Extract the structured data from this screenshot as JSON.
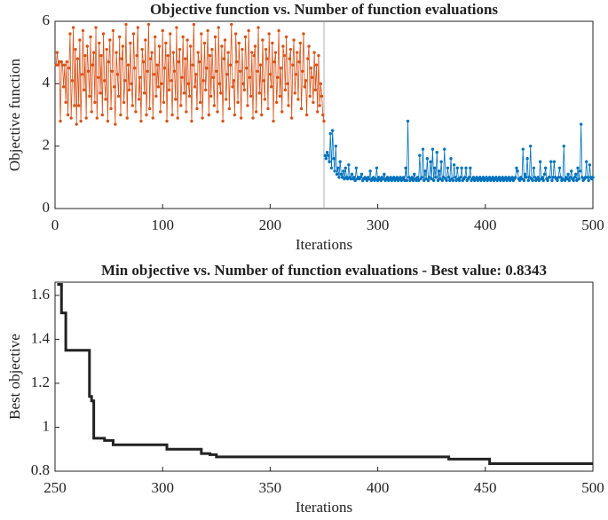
{
  "chart_data": [
    {
      "type": "line",
      "title": "Objective function vs. Number of function evaluations",
      "xlabel": "Iterations",
      "ylabel": "Objective function",
      "xlim": [
        0,
        500
      ],
      "xticks": [
        0,
        100,
        200,
        300,
        400,
        500
      ],
      "ylim": [
        0,
        6
      ],
      "yticks": [
        0,
        2,
        4,
        6
      ],
      "vline": 250,
      "markers": true,
      "series": [
        {
          "color": "#d95319",
          "x_start": 1,
          "values": [
            4.6,
            5.0,
            4.6,
            4.7,
            2.8,
            4.7,
            4.6,
            3.9,
            4.6,
            3.4,
            4.7,
            3.0,
            4.5,
            5.6,
            2.9,
            4.1,
            5.8,
            3.3,
            5.1,
            2.7,
            4.8,
            3.3,
            5.4,
            2.8,
            4.3,
            5.7,
            3.8,
            4.9,
            2.9,
            5.2,
            4.4,
            3.6,
            5.5,
            3.1,
            4.6,
            5.0,
            3.4,
            5.8,
            2.9,
            4.2,
            5.3,
            3.7,
            4.9,
            3.0,
            5.6,
            4.1,
            3.5,
            5.1,
            2.8,
            4.7,
            5.4,
            3.2,
            4.4,
            5.7,
            3.9,
            2.7,
            5.0,
            4.3,
            3.6,
            5.5,
            3.0,
            4.8,
            5.2,
            3.4,
            4.1,
            5.9,
            2.9,
            4.6,
            3.8,
            5.3,
            4.0,
            3.3,
            5.6,
            4.5,
            3.1,
            4.9,
            5.8,
            3.5,
            4.2,
            2.8,
            5.1,
            4.7,
            3.7,
            5.4,
            3.0,
            4.4,
            5.9,
            3.2,
            4.8,
            5.0,
            2.9,
            4.3,
            5.5,
            3.6,
            4.6,
            3.9,
            5.2,
            3.1,
            4.0,
            5.7,
            3.4,
            4.5,
            5.3,
            2.8,
            4.9,
            3.8,
            5.6,
            4.1,
            3.0,
            5.0,
            4.4,
            3.5,
            5.8,
            2.9,
            4.7,
            5.1,
            3.3,
            4.2,
            5.5,
            3.7,
            4.8,
            3.1,
            5.4,
            4.0,
            3.6,
            5.2,
            2.8,
            4.6,
            5.9,
            3.9,
            4.3,
            3.2,
            5.0,
            4.7,
            3.4,
            5.6,
            2.9,
            4.1,
            5.3,
            3.8,
            4.5,
            5.7,
            3.0,
            4.9,
            3.6,
            5.1,
            4.2,
            3.3,
            5.5,
            4.4,
            3.1,
            5.8,
            4.0,
            3.7,
            5.2,
            2.8,
            4.8,
            5.4,
            3.5,
            4.3,
            5.0,
            3.2,
            4.6,
            5.9,
            3.9,
            4.1,
            3.0,
            5.6,
            4.7,
            3.4,
            5.3,
            4.4,
            2.9,
            5.1,
            4.0,
            3.8,
            5.5,
            4.5,
            3.3,
            5.7,
            4.2,
            3.6,
            5.0,
            2.9,
            4.9,
            5.2,
            3.1,
            4.4,
            5.8,
            3.7,
            4.6,
            3.0,
            5.4,
            4.1,
            3.5,
            5.1,
            4.8,
            3.2,
            5.6,
            4.3,
            3.9,
            5.3,
            2.8,
            4.7,
            5.0,
            3.4,
            4.2,
            5.7,
            3.6,
            4.5,
            3.1,
            5.2,
            4.9,
            3.8,
            5.5,
            4.0,
            3.3,
            4.8,
            5.1,
            2.9,
            4.6,
            5.4,
            3.7,
            4.3,
            5.0,
            3.5,
            4.7,
            5.3,
            3.2,
            4.4,
            5.6,
            3.9,
            4.1,
            3.0,
            4.8,
            5.2,
            3.6,
            4.5,
            4.2,
            3.4,
            5.0,
            3.8,
            4.6,
            3.1,
            4.9,
            3.3,
            4.0,
            3.6,
            3.0,
            2.8
          ]
        },
        {
          "color": "#0072bd",
          "x_start": 251,
          "values": [
            1.7,
            1.6,
            1.8,
            1.7,
            1.5,
            2.4,
            1.3,
            2.5,
            1.6,
            1.2,
            2.0,
            1.1,
            1.3,
            1.0,
            1.5,
            1.1,
            1.0,
            1.2,
            0.95,
            1.3,
            1.0,
            0.95,
            1.4,
            1.0,
            0.95,
            1.1,
            0.95,
            1.0,
            0.9,
            1.3,
            0.95,
            1.0,
            0.95,
            1.0,
            1.1,
            0.9,
            0.95,
            1.0,
            0.95,
            0.9,
            1.0,
            0.95,
            1.2,
            0.9,
            0.95,
            1.0,
            0.9,
            0.95,
            1.3,
            0.9,
            1.0,
            0.95,
            0.9,
            1.0,
            0.95,
            1.1,
            0.9,
            0.95,
            1.0,
            0.9,
            0.95,
            1.0,
            0.9,
            0.95,
            1.0,
            0.9,
            0.95,
            1.0,
            0.9,
            0.95,
            1.0,
            0.9,
            0.95,
            1.0,
            0.9,
            1.3,
            0.9,
            2.8,
            1.0,
            0.9,
            0.95,
            1.0,
            0.9,
            1.1,
            0.95,
            0.9,
            1.0,
            0.9,
            1.7,
            0.95,
            1.0,
            1.9,
            0.9,
            1.2,
            0.95,
            1.6,
            0.9,
            1.0,
            1.5,
            0.95,
            1.9,
            0.9,
            1.3,
            1.0,
            1.8,
            0.9,
            1.2,
            0.95,
            1.5,
            0.9,
            1.0,
            1.9,
            0.95,
            0.9,
            1.3,
            1.0,
            0.9,
            1.6,
            0.95,
            0.9,
            1.4,
            1.0,
            0.9,
            1.3,
            0.95,
            0.9,
            1.0,
            1.3,
            0.9,
            0.95,
            1.0,
            1.3,
            0.9,
            0.95,
            1.0,
            1.3,
            0.9,
            0.95,
            1.0,
            0.9,
            0.95,
            1.0,
            0.9,
            0.95,
            1.0,
            0.9,
            0.95,
            1.0,
            0.9,
            0.95,
            1.0,
            0.9,
            0.95,
            1.0,
            0.9,
            0.95,
            1.0,
            0.9,
            0.95,
            1.0,
            0.9,
            0.95,
            1.0,
            0.9,
            0.95,
            1.0,
            0.9,
            0.95,
            1.0,
            0.9,
            0.95,
            1.0,
            0.9,
            0.95,
            1.0,
            0.9,
            0.95,
            1.0,
            1.3,
            1.2,
            0.95,
            0.9,
            1.0,
            0.95,
            1.9,
            0.9,
            1.1,
            1.0,
            1.6,
            0.9,
            1.0,
            2.0,
            0.95,
            0.9,
            1.3,
            1.0,
            0.9,
            0.95,
            1.0,
            0.9,
            1.5,
            0.95,
            1.0,
            0.9,
            1.1,
            1.3,
            0.95,
            0.9,
            1.0,
            1.0,
            1.5,
            0.9,
            1.0,
            1.5,
            1.0,
            0.95,
            0.9,
            1.0,
            1.3,
            1.0,
            0.9,
            0.95,
            2.0,
            0.9,
            1.0,
            0.95,
            1.1,
            0.9,
            1.0,
            1.2,
            0.95,
            0.9,
            1.0,
            1.1,
            0.9,
            1.3,
            0.95,
            1.2,
            2.7,
            1.0,
            0.9,
            0.95,
            1.0,
            1.5,
            1.0,
            0.9,
            1.4,
            1.0,
            0.95,
            1.0
          ]
        }
      ]
    },
    {
      "type": "step",
      "title": "Min objective vs. Number of function evaluations - Best value: 0.8343",
      "xlabel": "Iterations",
      "ylabel": "Best objective",
      "xlim": [
        250,
        500
      ],
      "xticks": [
        250,
        300,
        350,
        400,
        450,
        500
      ],
      "ylim": [
        0.8,
        1.66
      ],
      "yticks": [
        0.8,
        1,
        1.2,
        1.4,
        1.6
      ],
      "series": [
        {
          "color": "#222222",
          "x": [
            251,
            253,
            255,
            266,
            267,
            268,
            273,
            277,
            302,
            318,
            322,
            325,
            433,
            452,
            500
          ],
          "values": [
            1.65,
            1.52,
            1.35,
            1.14,
            1.12,
            0.95,
            0.94,
            0.92,
            0.9,
            0.88,
            0.875,
            0.865,
            0.855,
            0.8343,
            0.8343
          ]
        }
      ]
    }
  ]
}
